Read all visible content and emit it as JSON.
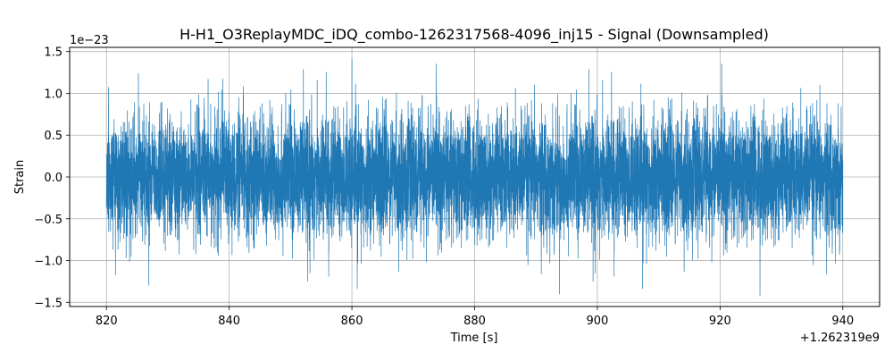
{
  "chart_data": {
    "type": "line",
    "title": "H-H1_O3ReplayMDC_iDQ_combo-1262317568-4096_inj15 - Signal (Downsampled)",
    "xlabel": "Time [s]",
    "ylabel": "Strain",
    "x_offset_label": "+1.262319e9",
    "y_scale_label": "1e−23",
    "xlim": [
      814,
      946
    ],
    "ylim": [
      -1.55,
      1.55
    ],
    "x_ticks": [
      820,
      840,
      860,
      880,
      900,
      920,
      940
    ],
    "x_tick_labels": [
      "820",
      "840",
      "860",
      "880",
      "900",
      "920",
      "940"
    ],
    "y_ticks": [
      -1.5,
      -1.0,
      -0.5,
      0.0,
      0.5,
      1.0,
      1.5
    ],
    "y_tick_labels": [
      "−1.5",
      "−1.0",
      "−0.5",
      "0.0",
      "0.5",
      "1.0",
      "1.5"
    ],
    "grid": true,
    "series": [
      {
        "color": "#1f77b4",
        "x_range": [
          820,
          940
        ],
        "y_min": -1.42,
        "y_max": 1.41,
        "typical_amplitude": 0.35
      }
    ]
  }
}
